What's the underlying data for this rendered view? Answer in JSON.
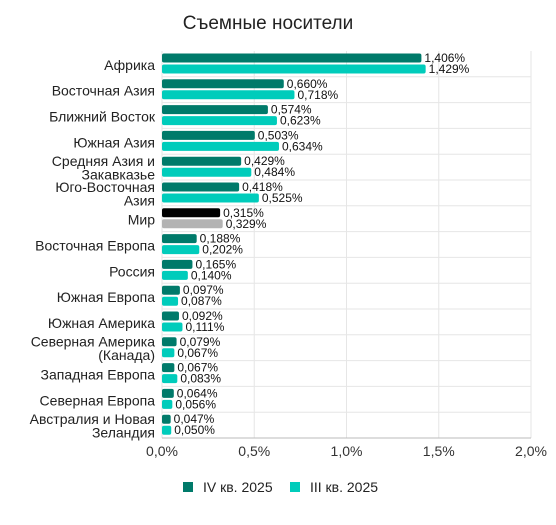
{
  "chart_data": {
    "type": "bar",
    "orientation": "horizontal",
    "title": "Съемные носители",
    "categories": [
      [
        "Африка"
      ],
      [
        "Восточная Азия"
      ],
      [
        "Ближний Восток"
      ],
      [
        "Южная Азия"
      ],
      [
        "Средняя Азия и",
        "Закавказье"
      ],
      [
        "Юго-Восточная",
        "Азия"
      ],
      [
        "Мир"
      ],
      [
        "Восточная Европа"
      ],
      [
        "Россия"
      ],
      [
        "Южная Европа"
      ],
      [
        "Южная Америка"
      ],
      [
        "Северная Америка",
        "(Канада)"
      ],
      [
        "Западная Европа"
      ],
      [
        "Северная Европа"
      ],
      [
        "Австралия и Новая",
        "Зеландия"
      ]
    ],
    "series": [
      {
        "name": "IV кв. 2025",
        "color": "#007a6a",
        "values": [
          1.406,
          0.66,
          0.574,
          0.503,
          0.429,
          0.418,
          0.315,
          0.188,
          0.165,
          0.097,
          0.092,
          0.079,
          0.067,
          0.064,
          0.047
        ],
        "labels": [
          "1,406%",
          "0,660%",
          "0,574%",
          "0,503%",
          "0,429%",
          "0,418%",
          "0,315%",
          "0,188%",
          "0,165%",
          "0,097%",
          "0,092%",
          "0,079%",
          "0,067%",
          "0,064%",
          "0,047%"
        ]
      },
      {
        "name": "III кв. 2025",
        "color": "#00ccbb",
        "values": [
          1.429,
          0.718,
          0.623,
          0.634,
          0.484,
          0.525,
          0.329,
          0.202,
          0.14,
          0.087,
          0.111,
          0.067,
          0.083,
          0.056,
          0.05
        ],
        "labels": [
          "1,429%",
          "0,718%",
          "0,623%",
          "0,634%",
          "0,484%",
          "0,525%",
          "0,329%",
          "0,202%",
          "0,140%",
          "0,087%",
          "0,111%",
          "0,067%",
          "0,083%",
          "0,056%",
          "0,050%"
        ]
      }
    ],
    "highlight": {
      "category_index": 6,
      "colors": [
        "#000000",
        "#b3b3b3"
      ]
    },
    "xlim": [
      0,
      2.0
    ],
    "xticks": [
      0,
      0.5,
      1.0,
      1.5,
      2.0
    ],
    "xtick_labels": [
      "0,0%",
      "0,5%",
      "1,0%",
      "1,5%",
      "2,0%"
    ],
    "grid": true,
    "legend_position": "bottom"
  }
}
